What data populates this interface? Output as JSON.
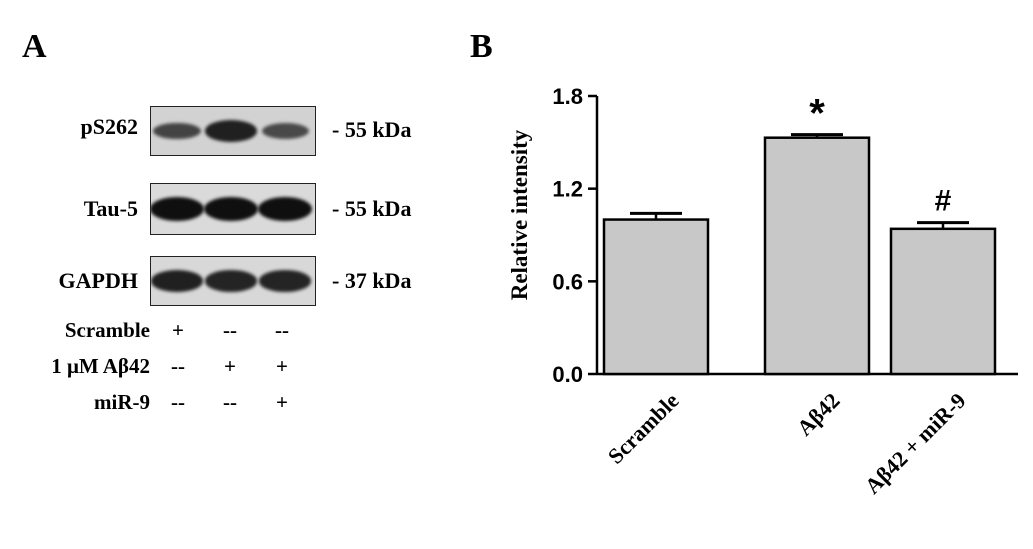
{
  "panels": {
    "a_letter": "A",
    "b_letter": "B"
  },
  "blot": {
    "rows": [
      {
        "label": "pS262",
        "kda": "- 55 kDa",
        "band_intensity": [
          0.55,
          0.85,
          0.5
        ]
      },
      {
        "label": "Tau-5",
        "kda": "- 55 kDa",
        "band_intensity": [
          1.0,
          1.0,
          1.0
        ]
      },
      {
        "label": "GAPDH",
        "kda": "- 37 kDa",
        "band_intensity": [
          0.85,
          0.82,
          0.82
        ]
      }
    ],
    "conditions": [
      {
        "label": "Scramble",
        "marks": [
          "+",
          "--",
          "--"
        ]
      },
      {
        "label": "1 μM Aβ42",
        "marks": [
          "--",
          "+",
          "+"
        ]
      },
      {
        "label": "miR-9",
        "marks": [
          "--",
          "--",
          "+"
        ]
      }
    ]
  },
  "chart_data": {
    "type": "bar",
    "categories": [
      "Scramble",
      "Aβ42",
      "Aβ42 + miR-9"
    ],
    "values": [
      1.0,
      1.53,
      0.94
    ],
    "errors": [
      0.04,
      0.02,
      0.04
    ],
    "annotations": [
      "",
      "*",
      "#"
    ],
    "ylabel": "Relative intensity",
    "ylim": [
      0.0,
      1.8
    ],
    "yticks": [
      "0.0",
      "0.6",
      "1.2",
      "1.8"
    ],
    "ytick_values": [
      0.0,
      0.6,
      1.2,
      1.8
    ],
    "bar_color": "#c8c8c8",
    "grid": false
  }
}
